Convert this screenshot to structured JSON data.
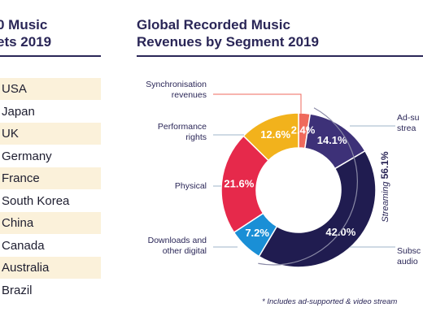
{
  "left_panel": {
    "title_line1": "0 Music",
    "title_line2": "ets 2019",
    "markets": [
      "USA",
      "Japan",
      "UK",
      "Germany",
      "France",
      "South Korea",
      "China",
      "Canada",
      "Australia",
      "Brazil"
    ]
  },
  "chart_data": {
    "type": "pie",
    "title_line1": "Global Recorded Music",
    "title_line2": "Revenues by Segment 2019",
    "slices": [
      {
        "label": "Synchronisation revenues",
        "label_lines": [
          "Synchronisation",
          "revenues"
        ],
        "value": 2.4,
        "value_label": "2.4%",
        "color": "#ef6a5c"
      },
      {
        "label": "Ad-supported streams",
        "label_lines": [
          "Ad-su",
          "strea"
        ],
        "value": 14.1,
        "value_label": "14.1%",
        "color": "#3d3178"
      },
      {
        "label": "Subscription audio streams",
        "label_lines": [
          "Subsc",
          "audio"
        ],
        "value": 42.0,
        "value_label": "42.0%",
        "color": "#201c50"
      },
      {
        "label": "Downloads and other digital",
        "label_lines": [
          "Downloads and",
          "other digital"
        ],
        "value": 7.2,
        "value_label": "7.2%",
        "color": "#1a8fd6"
      },
      {
        "label": "Physical",
        "label_lines": [
          "Physical"
        ],
        "value": 21.6,
        "value_label": "21.6%",
        "color": "#e6294b"
      },
      {
        "label": "Performance rights",
        "label_lines": [
          "Performance",
          "rights"
        ],
        "value": 12.6,
        "value_label": "12.6%",
        "color": "#f2b21c"
      }
    ],
    "streaming_group": {
      "label": "Streaming",
      "value_label": "56.1%",
      "value": 56.1
    },
    "footnote": "* Includes ad-supported & video stream"
  }
}
